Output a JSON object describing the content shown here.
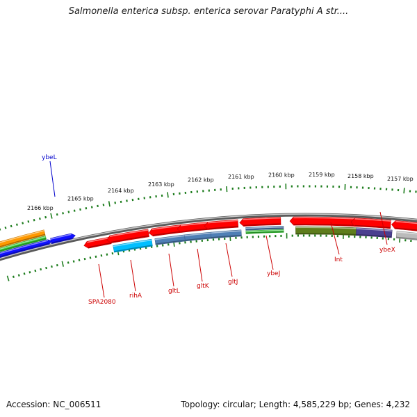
{
  "title": "Salmonella enterica subsp. enterica serovar Paratyphi A str....",
  "footer": {
    "accession": "Accession: NC_006511",
    "summary": "Topology: circular; Length: 4,585,229 bp; Genes: 4,232"
  },
  "scale_labels": [
    "2166 kbp",
    "2165 kbp",
    "2164 kbp",
    "2163 kbp",
    "2162 kbp",
    "2161 kbp",
    "2160 kbp",
    "2159 kbp",
    "2158 kbp",
    "2157 kbp"
  ],
  "gene_labels": {
    "outer": [
      {
        "text": "ybeL",
        "color": "#0000cc"
      }
    ],
    "inner": [
      {
        "text": "SPA2080",
        "color": "#cc0000"
      },
      {
        "text": "rihA",
        "color": "#cc0000"
      },
      {
        "text": "gltL",
        "color": "#cc0000"
      },
      {
        "text": "gltK",
        "color": "#cc0000"
      },
      {
        "text": "gltJ",
        "color": "#cc0000"
      },
      {
        "text": "ybeJ",
        "color": "#cc0000"
      },
      {
        "text": "Int",
        "color": "#cc0000"
      },
      {
        "text": "ybeX",
        "color": "#cc0000"
      }
    ]
  },
  "colors": {
    "backbone": "#7a7a7a",
    "tick": "#1e7d1e",
    "label_line_red": "#cc0000",
    "label_line_blue": "#0000cc",
    "red": "#ff0000",
    "blue": "#1010ff",
    "orange": "#ff9900",
    "green": "#33cc33",
    "cyan": "#00bfff",
    "steel": "#4f7fb5",
    "olive": "#5e7d1c",
    "purple": "#4a3f8f",
    "gray": "#bbbbbb"
  }
}
